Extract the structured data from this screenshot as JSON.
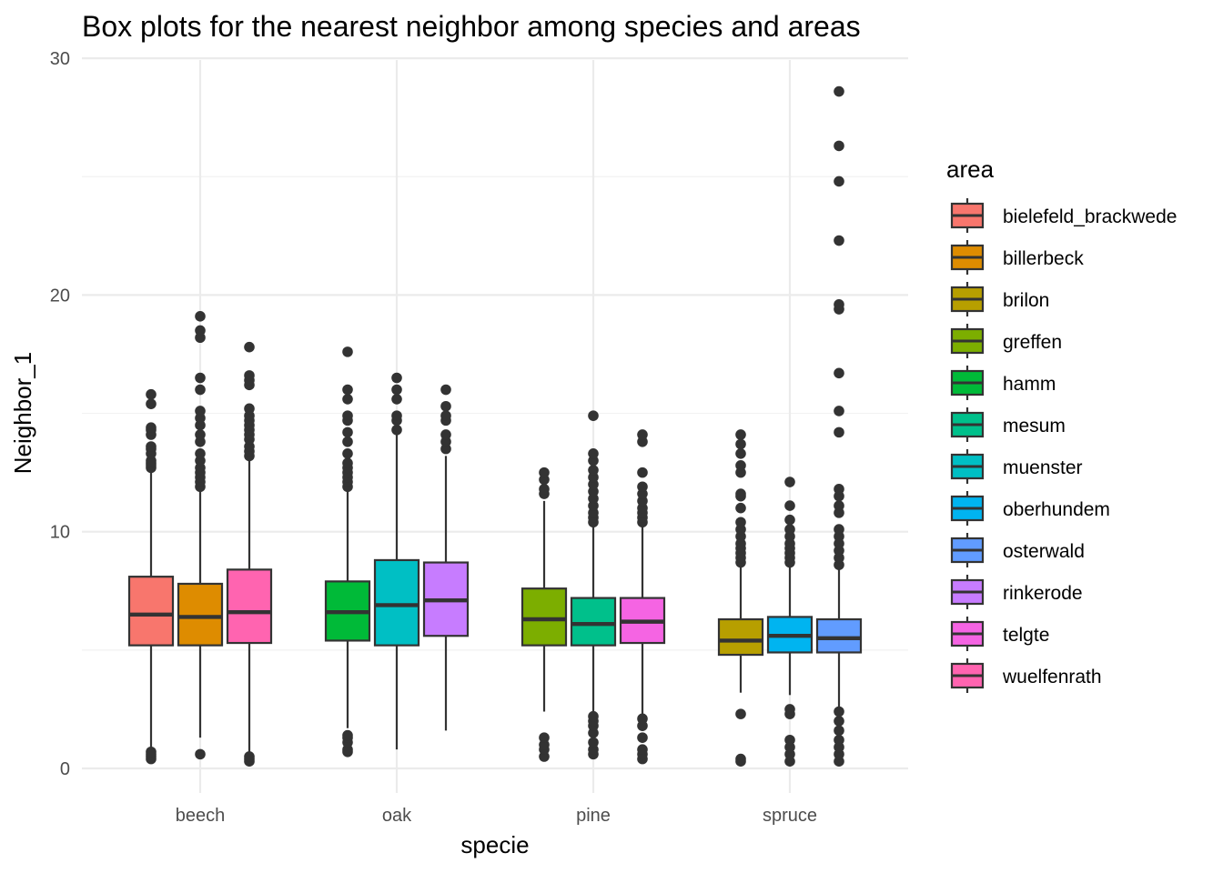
{
  "chart_data": {
    "type": "boxplot",
    "title": "Box plots for the nearest neighbor among species and areas",
    "xlabel": "specie",
    "ylabel": "Neighbor_1",
    "ylim": [
      -1,
      30.5
    ],
    "yticks": [
      0,
      10,
      20,
      30
    ],
    "grid": true,
    "legend": {
      "title": "area",
      "position": "right"
    },
    "categories": [
      "beech",
      "oak",
      "pine",
      "spruce"
    ],
    "series": [
      {
        "name": "bielefeld_brackwede",
        "color": "#F8766D"
      },
      {
        "name": "billerbeck",
        "color": "#DE8C00"
      },
      {
        "name": "brilon",
        "color": "#B79F00"
      },
      {
        "name": "greffen",
        "color": "#7CAE00"
      },
      {
        "name": "hamm",
        "color": "#00BA38"
      },
      {
        "name": "mesum",
        "color": "#00C08B"
      },
      {
        "name": "muenster",
        "color": "#00BFC4"
      },
      {
        "name": "oberhundem",
        "color": "#00B4F0"
      },
      {
        "name": "osterwald",
        "color": "#619CFF"
      },
      {
        "name": "rinkerode",
        "color": "#C77CFF"
      },
      {
        "name": "telgte",
        "color": "#F564E3"
      },
      {
        "name": "wuelfenrath",
        "color": "#FF64B0"
      }
    ],
    "boxes": [
      {
        "category": "beech",
        "area": "bielefeld_brackwede",
        "q1": 5.2,
        "median": 6.5,
        "q3": 8.1,
        "whisker_low": 0.8,
        "whisker_high": 12.5,
        "outliers": [
          0.4,
          0.5,
          0.6,
          0.7,
          12.7,
          12.8,
          12.9,
          13.0,
          13.3,
          13.5,
          13.6,
          14.1,
          14.3,
          14.4,
          15.4,
          15.8
        ]
      },
      {
        "category": "beech",
        "area": "billerbeck",
        "q1": 5.2,
        "median": 6.4,
        "q3": 7.8,
        "whisker_low": 1.3,
        "whisker_high": 11.7,
        "outliers": [
          0.6,
          11.9,
          12.1,
          12.3,
          12.5,
          12.7,
          13.0,
          13.3,
          13.8,
          14.1,
          14.5,
          14.8,
          15.1,
          16.0,
          16.5,
          18.2,
          18.5,
          19.1
        ]
      },
      {
        "category": "beech",
        "area": "wuelfenrath",
        "q1": 5.3,
        "median": 6.6,
        "q3": 8.4,
        "whisker_low": 0.7,
        "whisker_high": 13.0,
        "outliers": [
          0.3,
          0.4,
          0.5,
          13.2,
          13.4,
          13.6,
          13.9,
          14.1,
          14.3,
          14.5,
          14.7,
          14.9,
          15.2,
          16.2,
          16.4,
          16.6,
          17.8
        ]
      },
      {
        "category": "oak",
        "area": "hamm",
        "q1": 5.4,
        "median": 6.6,
        "q3": 7.9,
        "whisker_low": 1.7,
        "whisker_high": 11.8,
        "outliers": [
          0.7,
          0.8,
          1.1,
          1.3,
          1.4,
          11.9,
          12.1,
          12.3,
          12.5,
          12.7,
          12.9,
          13.3,
          13.8,
          14.2,
          14.7,
          14.9,
          15.6,
          16.0,
          17.6
        ]
      },
      {
        "category": "oak",
        "area": "muenster",
        "q1": 5.2,
        "median": 6.9,
        "q3": 8.8,
        "whisker_low": 0.8,
        "whisker_high": 14.1,
        "outliers": [
          14.3,
          14.7,
          14.9,
          15.6,
          16.0,
          16.5
        ]
      },
      {
        "category": "oak",
        "area": "rinkerode",
        "q1": 5.6,
        "median": 7.1,
        "q3": 8.7,
        "whisker_low": 1.6,
        "whisker_high": 13.2,
        "outliers": [
          13.5,
          13.8,
          14.1,
          14.7,
          14.9,
          15.3,
          16.0
        ]
      },
      {
        "category": "pine",
        "area": "greffen",
        "q1": 5.2,
        "median": 6.3,
        "q3": 7.6,
        "whisker_low": 2.4,
        "whisker_high": 11.3,
        "outliers": [
          0.5,
          0.8,
          1.0,
          1.3,
          11.6,
          11.8,
          12.2,
          12.5
        ]
      },
      {
        "category": "pine",
        "area": "mesum",
        "q1": 5.2,
        "median": 6.1,
        "q3": 7.2,
        "whisker_low": 2.2,
        "whisker_high": 10.3,
        "outliers": [
          0.6,
          0.8,
          1.1,
          1.5,
          1.8,
          2.0,
          2.2,
          10.4,
          10.6,
          10.8,
          11.1,
          11.4,
          11.7,
          12.0,
          12.3,
          12.6,
          13.0,
          13.3,
          14.9
        ]
      },
      {
        "category": "pine",
        "area": "telgte",
        "q1": 5.3,
        "median": 6.2,
        "q3": 7.2,
        "whisker_low": 2.3,
        "whisker_high": 10.3,
        "outliers": [
          0.4,
          0.6,
          0.8,
          1.3,
          1.8,
          2.1,
          10.4,
          10.6,
          10.8,
          11.0,
          11.3,
          11.6,
          11.9,
          12.5,
          13.8,
          14.1
        ]
      },
      {
        "category": "spruce",
        "area": "brilon",
        "q1": 4.8,
        "median": 5.4,
        "q3": 6.3,
        "whisker_low": 3.2,
        "whisker_high": 8.5,
        "outliers": [
          0.3,
          0.4,
          2.3,
          8.7,
          8.9,
          9.1,
          9.3,
          9.5,
          9.8,
          10.1,
          10.4,
          11.0,
          11.5,
          11.6,
          12.5,
          12.8,
          13.3,
          13.7,
          14.1
        ]
      },
      {
        "category": "spruce",
        "area": "oberhundem",
        "q1": 4.9,
        "median": 5.6,
        "q3": 6.4,
        "whisker_low": 3.1,
        "whisker_high": 8.5,
        "outliers": [
          0.3,
          0.6,
          0.9,
          1.2,
          2.3,
          2.5,
          8.7,
          8.9,
          9.1,
          9.3,
          9.5,
          9.8,
          10.1,
          10.5,
          11.1,
          12.1
        ]
      },
      {
        "category": "spruce",
        "area": "osterwald",
        "q1": 4.9,
        "median": 5.5,
        "q3": 6.3,
        "whisker_low": 2.6,
        "whisker_high": 8.4,
        "outliers": [
          0.3,
          0.6,
          0.9,
          1.2,
          1.6,
          2.0,
          2.4,
          8.6,
          8.9,
          9.2,
          9.5,
          9.8,
          10.1,
          10.8,
          11.1,
          11.5,
          11.8,
          14.2,
          15.1,
          16.7,
          19.4,
          19.6,
          22.3,
          24.8,
          26.3,
          28.6
        ]
      }
    ]
  }
}
